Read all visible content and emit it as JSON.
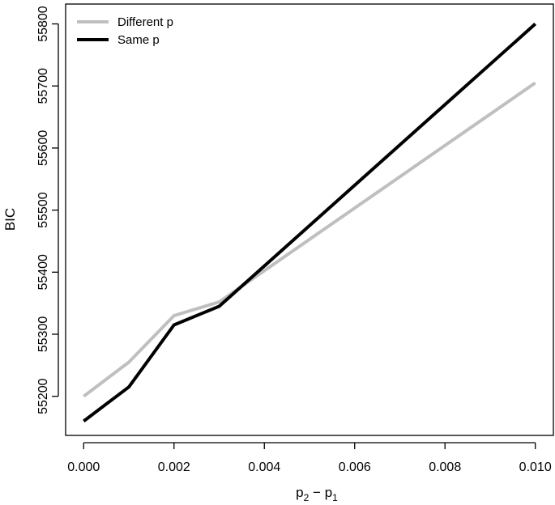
{
  "chart_data": {
    "type": "line",
    "xlabel": {
      "base": "p",
      "sub1": "2",
      "sep": " − ",
      "base2": "p",
      "sub2": "1"
    },
    "ylabel": "BIC",
    "x": [
      0.0,
      0.001,
      0.002,
      0.003,
      0.01
    ],
    "xlim": [
      -0.0004,
      0.0104
    ],
    "ylim": [
      55137,
      55832
    ],
    "xticks": [
      0.0,
      0.002,
      0.004,
      0.006,
      0.008,
      0.01
    ],
    "xtick_labels": [
      "0.000",
      "0.002",
      "0.004",
      "0.006",
      "0.008",
      "0.010"
    ],
    "yticks": [
      55200,
      55300,
      55400,
      55500,
      55600,
      55700,
      55800
    ],
    "ytick_labels": [
      "55200",
      "55300",
      "55400",
      "55500",
      "55600",
      "55700",
      "55800"
    ],
    "grid": false,
    "legend_position": "top-left",
    "series": [
      {
        "name": "Different p",
        "color": "#bfbfbf",
        "values": [
          55200,
          55255,
          55330,
          55352,
          55705
        ]
      },
      {
        "name": "Same p",
        "color": "#000000",
        "values": [
          55160,
          55215,
          55315,
          55345,
          55800
        ]
      }
    ]
  }
}
